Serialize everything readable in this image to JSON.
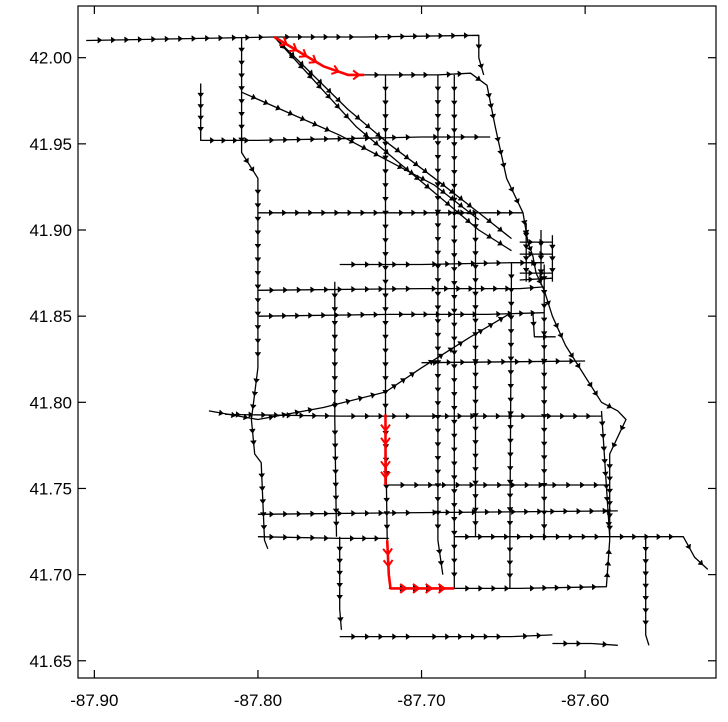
{
  "chart_data": {
    "type": "line",
    "title": "",
    "xlabel": "",
    "ylabel": "",
    "xlim": [
      -87.91,
      -87.52
    ],
    "ylim": [
      41.64,
      42.03
    ],
    "xticks": [
      -87.9,
      -87.8,
      -87.7,
      -87.6
    ],
    "xtick_labels": [
      "-87.90",
      "-87.80",
      "-87.70",
      "-87.60"
    ],
    "yticks": [
      41.65,
      41.7,
      41.75,
      41.8,
      41.85,
      41.9,
      41.95,
      42.0
    ],
    "ytick_labels": [
      "41.65",
      "41.70",
      "41.75",
      "41.80",
      "41.85",
      "41.90",
      "41.95",
      "42.00"
    ],
    "grid": false,
    "legend": "none",
    "colors": {
      "network": "#000000",
      "route": "#ff0000",
      "axes": "#000000"
    },
    "network": [
      [
        [
          -87.905,
          42.01
        ],
        [
          -87.79,
          42.012
        ],
        [
          -87.735,
          42.012
        ],
        [
          -87.665,
          42.013
        ],
        [
          -87.665,
          42.0
        ],
        [
          -87.662,
          41.99
        ]
      ],
      [
        [
          -87.735,
          41.99
        ],
        [
          -87.72,
          41.99
        ],
        [
          -87.69,
          41.99
        ],
        [
          -87.67,
          41.991
        ],
        [
          -87.66,
          41.984
        ],
        [
          -87.655,
          41.96
        ],
        [
          -87.648,
          41.93
        ],
        [
          -87.638,
          41.91
        ],
        [
          -87.635,
          41.893
        ],
        [
          -87.632,
          41.885
        ],
        [
          -87.63,
          41.875
        ],
        [
          -87.625,
          41.865
        ],
        [
          -87.62,
          41.85
        ],
        [
          -87.612,
          41.833
        ],
        [
          -87.6,
          41.815
        ],
        [
          -87.59,
          41.8
        ],
        [
          -87.58,
          41.795
        ],
        [
          -87.575,
          41.79
        ],
        [
          -87.58,
          41.78
        ],
        [
          -87.585,
          41.77
        ],
        [
          -87.585,
          41.72
        ]
      ],
      [
        [
          -87.81,
          42.012
        ],
        [
          -87.81,
          41.945
        ],
        [
          -87.8,
          41.93
        ],
        [
          -87.8,
          41.82
        ],
        [
          -87.804,
          41.79
        ],
        [
          -87.802,
          41.77
        ],
        [
          -87.798,
          41.765
        ],
        [
          -87.796,
          41.72
        ],
        [
          -87.794,
          41.715
        ]
      ],
      [
        [
          -87.79,
          42.012
        ],
        [
          -87.745,
          41.97
        ],
        [
          -87.72,
          41.95
        ],
        [
          -87.692,
          41.93
        ],
        [
          -87.665,
          41.91
        ],
        [
          -87.645,
          41.895
        ]
      ],
      [
        [
          -87.81,
          41.98
        ],
        [
          -87.75,
          41.955
        ],
        [
          -87.72,
          41.94
        ],
        [
          -87.692,
          41.926
        ],
        [
          -87.665,
          41.906
        ]
      ],
      [
        [
          -87.79,
          42.012
        ],
        [
          -87.74,
          41.96
        ],
        [
          -87.715,
          41.94
        ],
        [
          -87.69,
          41.92
        ],
        [
          -87.665,
          41.9
        ],
        [
          -87.645,
          41.888
        ]
      ],
      [
        [
          -87.835,
          41.985
        ],
        [
          -87.835,
          41.952
        ],
        [
          -87.8,
          41.952
        ],
        [
          -87.7,
          41.954
        ],
        [
          -87.658,
          41.954
        ]
      ],
      [
        [
          -87.8,
          41.91
        ],
        [
          -87.72,
          41.91
        ],
        [
          -87.66,
          41.91
        ],
        [
          -87.638,
          41.91
        ]
      ],
      [
        [
          -87.75,
          41.88
        ],
        [
          -87.7,
          41.88
        ],
        [
          -87.645,
          41.881
        ],
        [
          -87.625,
          41.881
        ]
      ],
      [
        [
          -87.8,
          41.865
        ],
        [
          -87.7,
          41.866
        ],
        [
          -87.64,
          41.866
        ],
        [
          -87.625,
          41.867
        ]
      ],
      [
        [
          -87.8,
          41.85
        ],
        [
          -87.72,
          41.851
        ],
        [
          -87.66,
          41.851
        ],
        [
          -87.625,
          41.852
        ]
      ],
      [
        [
          -87.82,
          41.793
        ],
        [
          -87.75,
          41.792
        ],
        [
          -87.7,
          41.792
        ],
        [
          -87.63,
          41.792
        ],
        [
          -87.59,
          41.792
        ]
      ],
      [
        [
          -87.83,
          41.795
        ],
        [
          -87.8,
          41.79
        ],
        [
          -87.76,
          41.797
        ],
        [
          -87.722,
          41.806
        ],
        [
          -87.7,
          41.82
        ],
        [
          -87.67,
          41.838
        ],
        [
          -87.645,
          41.852
        ]
      ],
      [
        [
          -87.7,
          41.823
        ],
        [
          -87.6,
          41.824
        ]
      ],
      [
        [
          -87.8,
          41.722
        ],
        [
          -87.75,
          41.721
        ],
        [
          -87.72,
          41.721
        ]
      ],
      [
        [
          -87.8,
          41.735
        ],
        [
          -87.7,
          41.736
        ],
        [
          -87.58,
          41.737
        ]
      ],
      [
        [
          -87.72,
          41.752
        ],
        [
          -87.585,
          41.752
        ]
      ],
      [
        [
          -87.68,
          41.722
        ],
        [
          -87.585,
          41.722
        ],
        [
          -87.54,
          41.722
        ],
        [
          -87.533,
          41.71
        ],
        [
          -87.525,
          41.703
        ]
      ],
      [
        [
          -87.72,
          41.692
        ],
        [
          -87.68,
          41.692
        ],
        [
          -87.64,
          41.692
        ],
        [
          -87.587,
          41.693
        ],
        [
          -87.585,
          41.72
        ]
      ],
      [
        [
          -87.75,
          41.664
        ],
        [
          -87.7,
          41.664
        ],
        [
          -87.645,
          41.664
        ],
        [
          -87.62,
          41.665
        ]
      ],
      [
        [
          -87.62,
          41.66
        ],
        [
          -87.596,
          41.66
        ],
        [
          -87.58,
          41.659
        ]
      ],
      [
        [
          -87.75,
          41.722
        ],
        [
          -87.75,
          41.68
        ],
        [
          -87.749,
          41.668
        ]
      ],
      [
        [
          -87.753,
          41.87
        ],
        [
          -87.753,
          41.79
        ],
        [
          -87.752,
          41.722
        ]
      ],
      [
        [
          -87.722,
          41.99
        ],
        [
          -87.722,
          41.79
        ],
        [
          -87.721,
          41.72
        ]
      ],
      [
        [
          -87.69,
          41.99
        ],
        [
          -87.69,
          41.72
        ],
        [
          -87.687,
          41.7
        ]
      ],
      [
        [
          -87.68,
          41.99
        ],
        [
          -87.68,
          41.692
        ]
      ],
      [
        [
          -87.667,
          41.91
        ],
        [
          -87.667,
          41.722
        ]
      ],
      [
        [
          -87.645,
          41.881
        ],
        [
          -87.646,
          41.722
        ],
        [
          -87.646,
          41.692
        ]
      ],
      [
        [
          -87.625,
          41.88
        ],
        [
          -87.625,
          41.72
        ]
      ],
      [
        [
          -87.59,
          41.795
        ],
        [
          -87.585,
          41.722
        ]
      ],
      [
        [
          -87.563,
          41.722
        ],
        [
          -87.563,
          41.665
        ],
        [
          -87.561,
          41.659
        ]
      ],
      [
        [
          -87.636,
          41.904
        ],
        [
          -87.636,
          41.87
        ]
      ],
      [
        [
          -87.627,
          41.9
        ],
        [
          -87.627,
          41.868
        ]
      ],
      [
        [
          -87.62,
          41.897
        ],
        [
          -87.62,
          41.87
        ]
      ],
      [
        [
          -87.64,
          41.893
        ],
        [
          -87.62,
          41.893
        ]
      ],
      [
        [
          -87.64,
          41.886
        ],
        [
          -87.62,
          41.886
        ]
      ],
      [
        [
          -87.64,
          41.875
        ],
        [
          -87.62,
          41.875
        ]
      ],
      [
        [
          -87.64,
          41.871
        ],
        [
          -87.62,
          41.872
        ]
      ],
      [
        [
          -87.632,
          41.853
        ],
        [
          -87.631,
          41.838
        ],
        [
          -87.618,
          41.838
        ]
      ]
    ],
    "highlighted_route": [
      [
        [
          -87.79,
          42.012
        ],
        [
          -87.76,
          41.995
        ],
        [
          -87.745,
          41.99
        ],
        [
          -87.735,
          41.99
        ]
      ],
      [
        [
          -87.722,
          41.793
        ],
        [
          -87.722,
          41.77
        ],
        [
          -87.722,
          41.752
        ]
      ],
      [
        [
          -87.721,
          41.72
        ],
        [
          -87.72,
          41.7
        ],
        [
          -87.719,
          41.692
        ],
        [
          -87.68,
          41.692
        ]
      ]
    ]
  }
}
